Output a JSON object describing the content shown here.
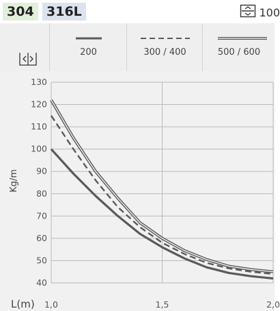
{
  "header": {
    "badge_304": "304",
    "badge_316l": "316L",
    "right_text": "100",
    "right_icon": "width-box-icon"
  },
  "legend": {
    "width_icon": "width-arrows-icon",
    "items": [
      {
        "label": "200",
        "style": "thick-solid"
      },
      {
        "label": "300 / 400",
        "style": "dashed"
      },
      {
        "label": "500 / 600",
        "style": "double-line"
      }
    ]
  },
  "colors": {
    "badge_304": "#e2efdb",
    "badge_316l": "#dde2ef",
    "panel": "#efefef",
    "curve": "#5a5a5a"
  },
  "chart_data": {
    "type": "line",
    "xlabel": "L(m)",
    "ylabel": "Kg/m",
    "xlim": [
      1.0,
      2.0
    ],
    "ylim": [
      40,
      130
    ],
    "x_ticks": [
      "1,0",
      "1,5",
      "2,0"
    ],
    "y_ticks": [
      "130",
      "120",
      "110",
      "100",
      "90",
      "80",
      "70",
      "60",
      "50",
      "40"
    ],
    "grid": true,
    "series": [
      {
        "name": "200",
        "style": "thick-solid",
        "x": [
          1.0,
          1.1,
          1.2,
          1.3,
          1.4,
          1.5,
          1.6,
          1.7,
          1.8,
          1.9,
          2.0
        ],
        "y": [
          100,
          89,
          79,
          70,
          62,
          56,
          51,
          47,
          44.5,
          43,
          42
        ]
      },
      {
        "name": "300 / 400",
        "style": "dashed",
        "x": [
          1.0,
          1.1,
          1.2,
          1.3,
          1.4,
          1.5,
          1.6,
          1.7,
          1.8,
          1.9,
          2.0
        ],
        "y": [
          115,
          100,
          86,
          74,
          65,
          58,
          53,
          49,
          46.5,
          45,
          44
        ]
      },
      {
        "name": "500 / 600",
        "style": "double-line",
        "x": [
          1.0,
          1.1,
          1.2,
          1.3,
          1.4,
          1.5,
          1.6,
          1.7,
          1.8,
          1.9,
          2.0
        ],
        "y": [
          122,
          105,
          90,
          78,
          67,
          60,
          54.5,
          50.5,
          47.5,
          46,
          45
        ]
      }
    ]
  }
}
